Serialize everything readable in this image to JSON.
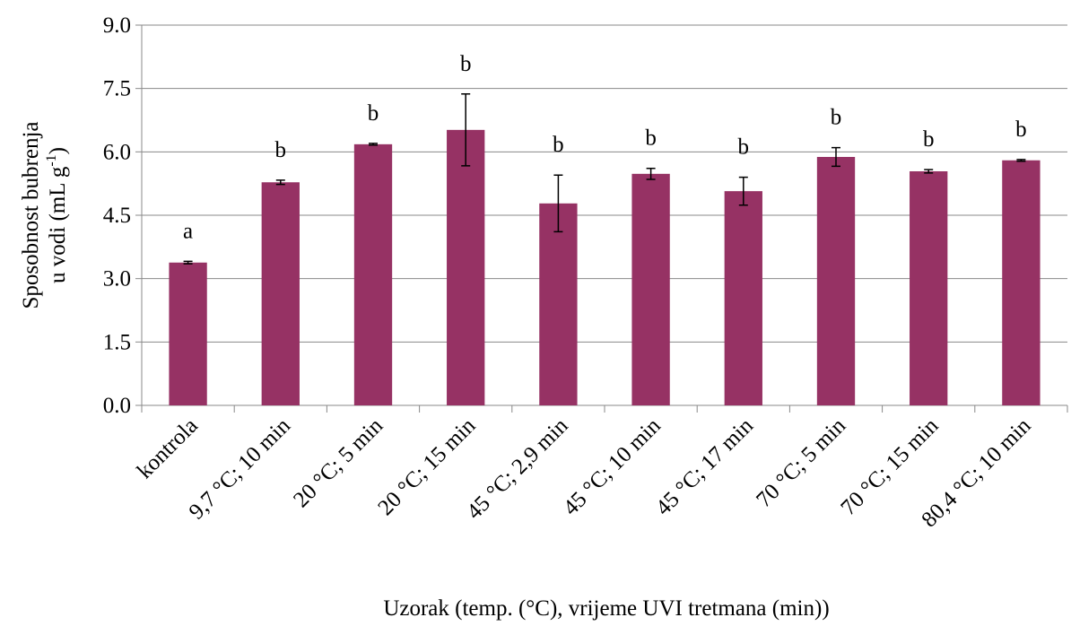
{
  "chart_data": {
    "type": "bar",
    "categories": [
      "kontrola",
      "9,7 °C; 10 min",
      "20 °C; 5 min",
      "20 °C; 15 min",
      "45 °C; 2,9 min",
      "45 °C; 10 min",
      "45 °C; 17 min",
      "70 °C; 5 min",
      "70 °C; 15 min",
      "80,4 °C; 10 min"
    ],
    "values": [
      3.38,
      5.28,
      6.18,
      6.52,
      4.78,
      5.48,
      5.07,
      5.88,
      5.54,
      5.8
    ],
    "errors": [
      0.03,
      0.05,
      0.02,
      0.85,
      0.67,
      0.13,
      0.33,
      0.22,
      0.04,
      0.02
    ],
    "annotations": [
      "a",
      "b",
      "b",
      "b",
      "b",
      "b",
      "b",
      "b",
      "b",
      "b"
    ],
    "color": "#963264",
    "ylim": [
      0,
      9
    ],
    "yticks": [
      {
        "value": 0,
        "label": "0.0"
      },
      1.5,
      {
        "value": 3,
        "label": "3.0"
      },
      4.5,
      {
        "value": 6,
        "label": "6.0"
      },
      7.5,
      {
        "value": 9,
        "label": "9.0"
      }
    ],
    "grid": true,
    "x_label": "Uzorak (temp. (°C), vrijeme UVI tretmana (min))",
    "y_label": {
      "line1": "Sposobnost bubrenja",
      "line2": "u vodi (mL g",
      "superscript": "-1",
      "close": ")"
    }
  }
}
